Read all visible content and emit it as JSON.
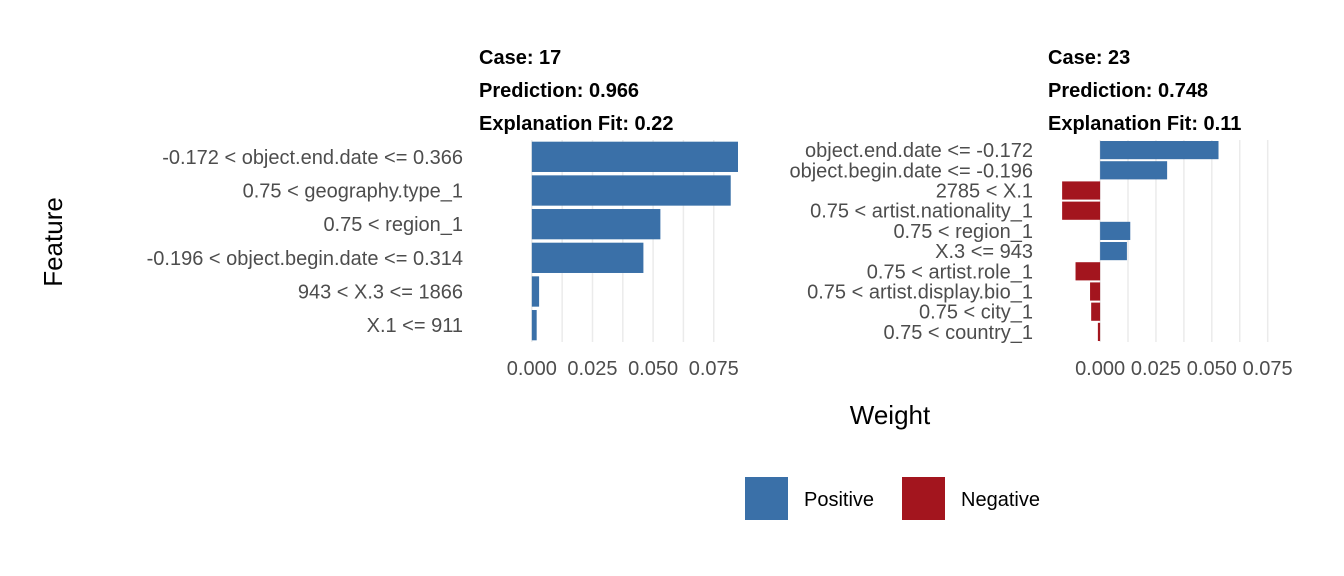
{
  "chart_data": {
    "type": "bar",
    "orientation": "horizontal",
    "xlabel": "Weight",
    "ylabel": "Feature",
    "xlim": [
      -0.009,
      0.085
    ],
    "xticks": [
      "0.000",
      "0.025",
      "0.050",
      "0.075"
    ],
    "xtick_values": [
      0,
      0.025,
      0.05,
      0.075
    ],
    "grid": true,
    "legend": {
      "position": "bottom",
      "entries": [
        {
          "label": "Positive",
          "color": "#3A70A8"
        },
        {
          "label": "Negative",
          "color": "#A3151E"
        }
      ]
    },
    "panels": [
      {
        "case_label": "Case: 17",
        "prediction_label": "Prediction: 0.966",
        "fit_label": "Explanation Fit: 0.22",
        "features": [
          {
            "label": "-0.172 < object.end.date <= 0.366",
            "value": 0.085
          },
          {
            "label": "0.75 < geography.type_1",
            "value": 0.082
          },
          {
            "label": "0.75 < region_1",
            "value": 0.053
          },
          {
            "label": "-0.196 < object.begin.date <= 0.314",
            "value": 0.046
          },
          {
            "label": "943 < X.3 <= 1866",
            "value": 0.003
          },
          {
            "label": "X.1 <= 911",
            "value": 0.002
          }
        ]
      },
      {
        "case_label": "Case: 23",
        "prediction_label": "Prediction: 0.748",
        "fit_label": "Explanation Fit: 0.11",
        "features": [
          {
            "label": "object.end.date <= -0.172",
            "value": 0.053
          },
          {
            "label": "object.begin.date <= -0.196",
            "value": 0.03
          },
          {
            "label": "2785 < X.1",
            "value": -0.017
          },
          {
            "label": "0.75 < artist.nationality_1",
            "value": -0.017
          },
          {
            "label": "0.75 < region_1",
            "value": 0.0135
          },
          {
            "label": "X.3 <= 943",
            "value": 0.012
          },
          {
            "label": "0.75 < artist.role_1",
            "value": -0.011
          },
          {
            "label": "0.75 < artist.display.bio_1",
            "value": -0.0045
          },
          {
            "label": "0.75 < city_1",
            "value": -0.004
          },
          {
            "label": "0.75 < country_1",
            "value": -0.001
          }
        ]
      }
    ]
  }
}
